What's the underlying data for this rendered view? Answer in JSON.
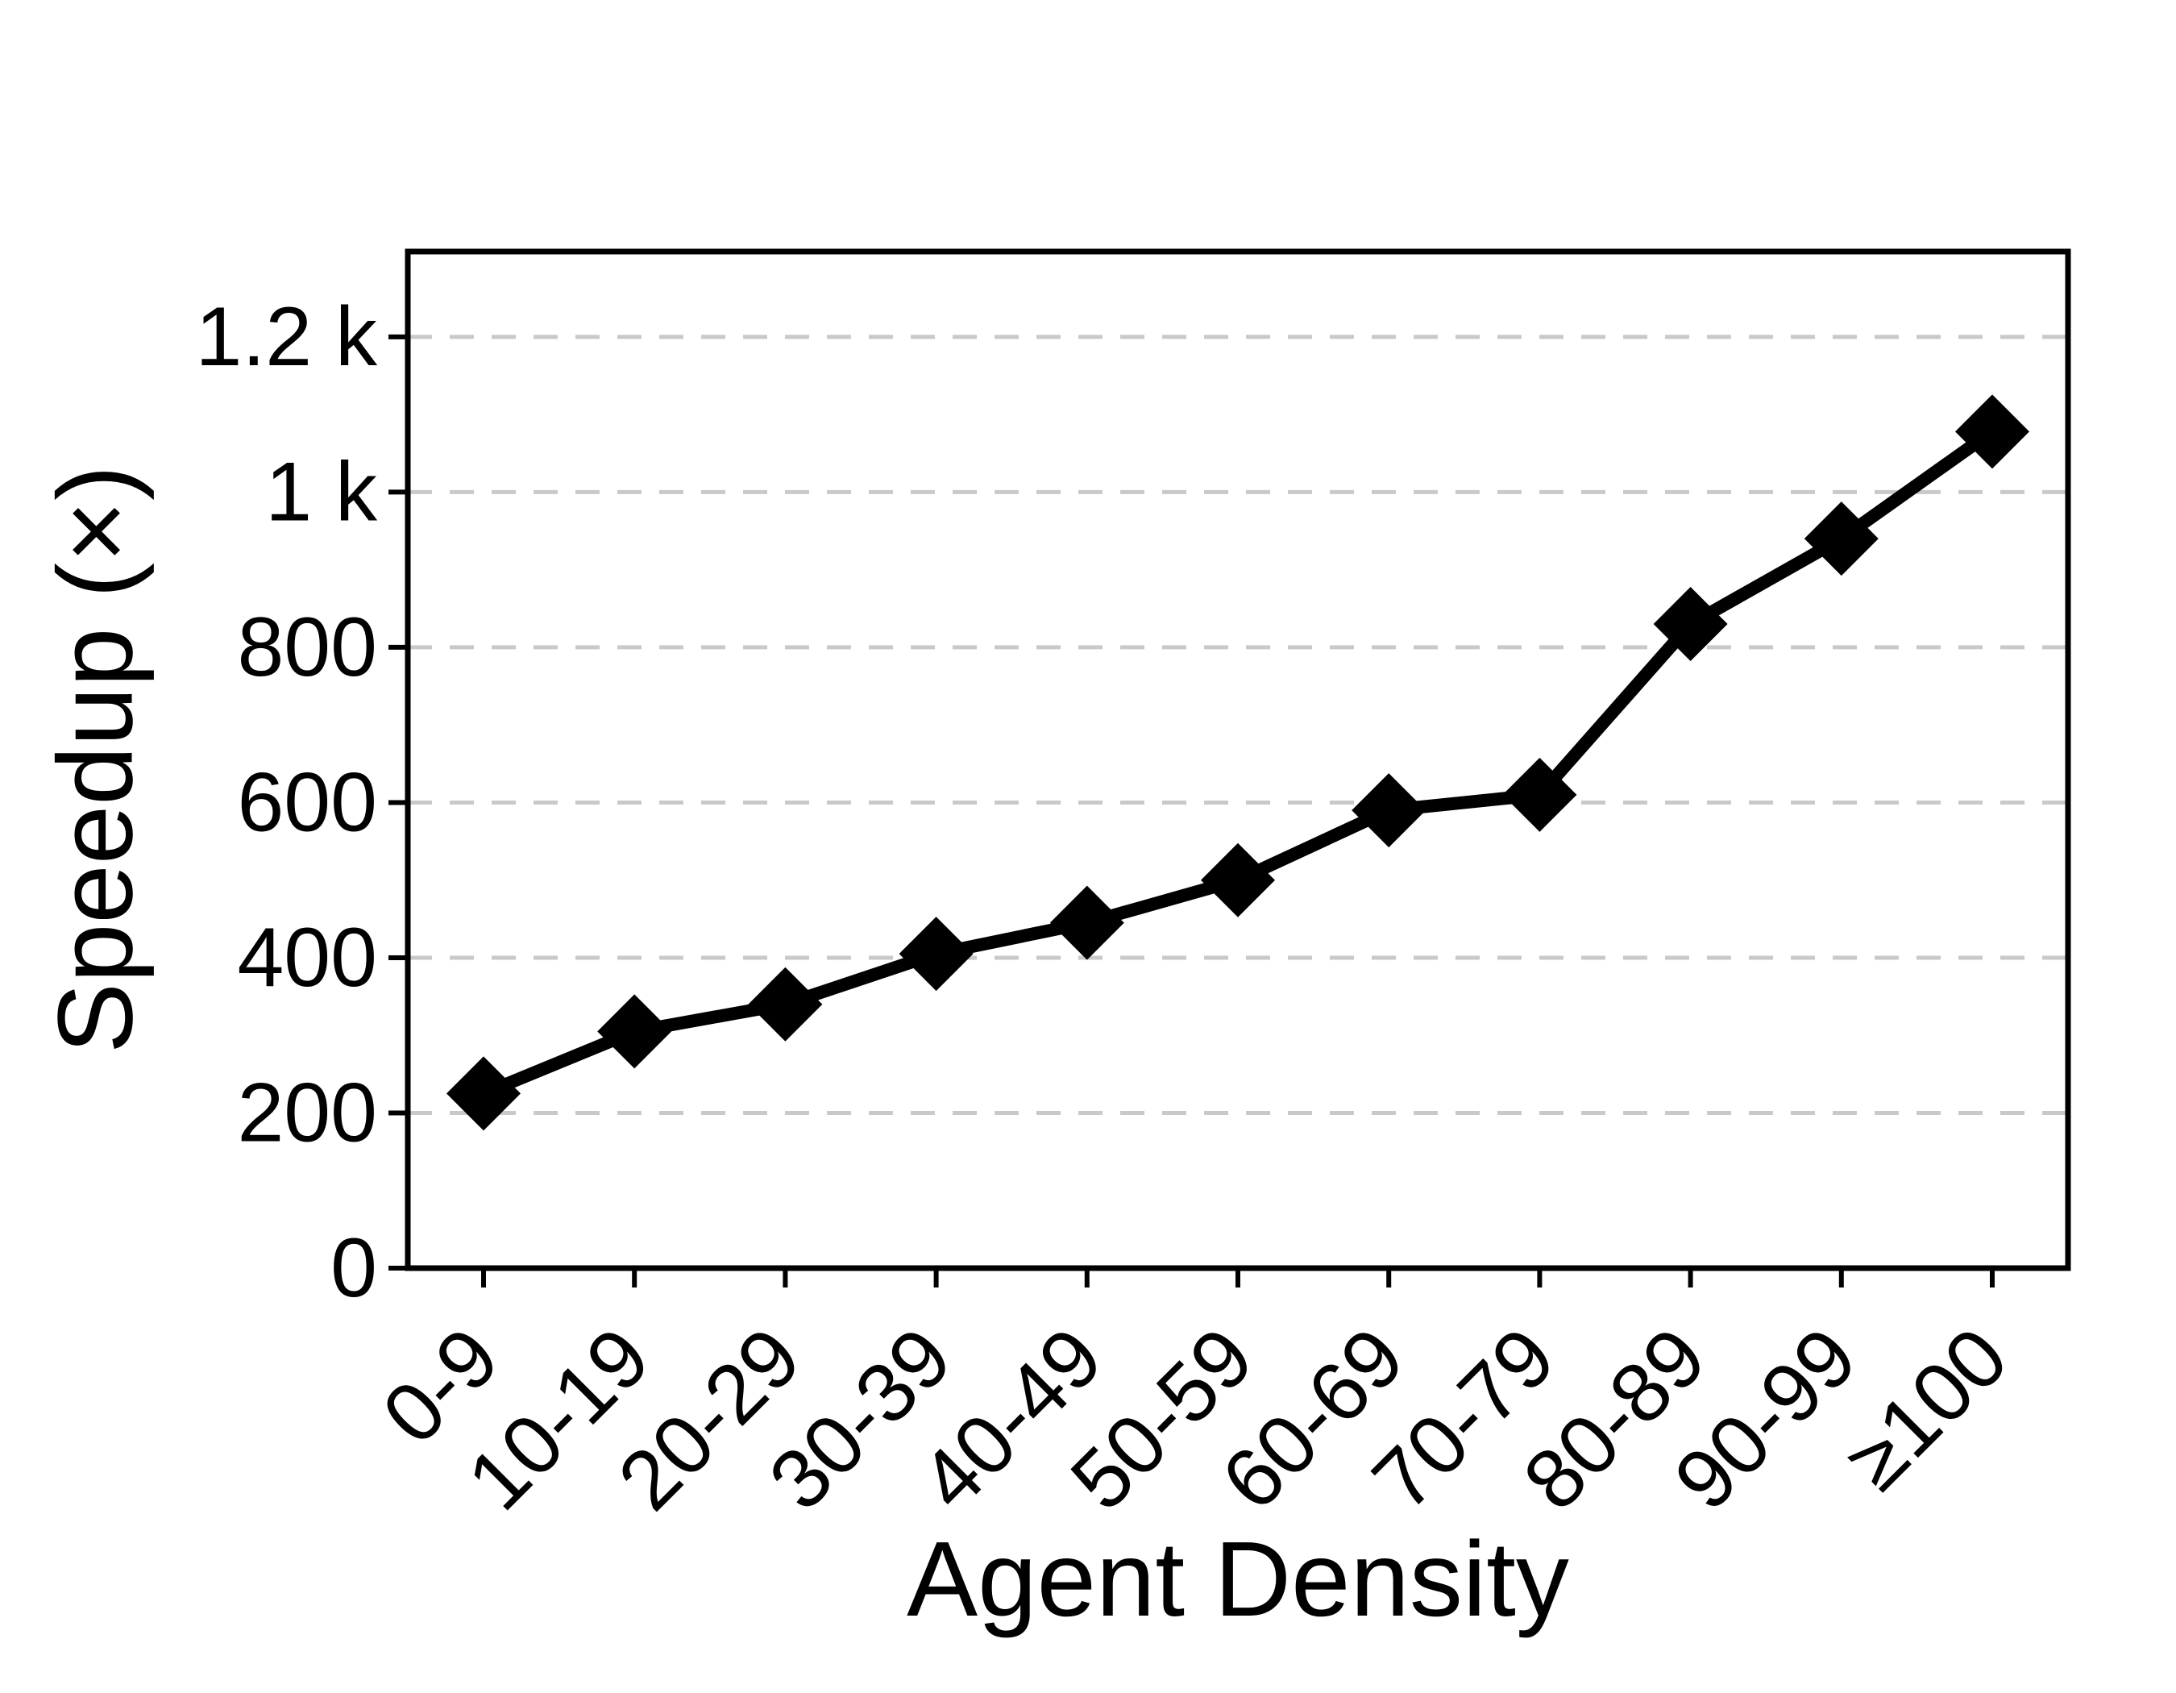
{
  "chart_data": {
    "type": "line",
    "title": "",
    "xlabel": "Agent Density",
    "ylabel": "Speedup (×)",
    "categories": [
      "0-9",
      "10-19",
      "20-29",
      "30-39",
      "40-49",
      "50-59",
      "60-69",
      "70-79",
      "80-89",
      "90-99",
      "≥100"
    ],
    "values": [
      225,
      305,
      340,
      405,
      445,
      500,
      590,
      610,
      830,
      940,
      1078
    ],
    "ylim": [
      0,
      1310
    ],
    "yticks": [
      0,
      200,
      400,
      600,
      800,
      1000,
      1200
    ],
    "ytick_labels": [
      "0",
      "200",
      "400",
      "600",
      "800",
      "1 k",
      "1.2 k"
    ],
    "grid": {
      "axis": "y",
      "style": "dashed",
      "color": "#c9c9c9"
    },
    "legend": "none",
    "line": {
      "color": "#000000",
      "marker": "diamond"
    },
    "background": "#ffffff"
  }
}
